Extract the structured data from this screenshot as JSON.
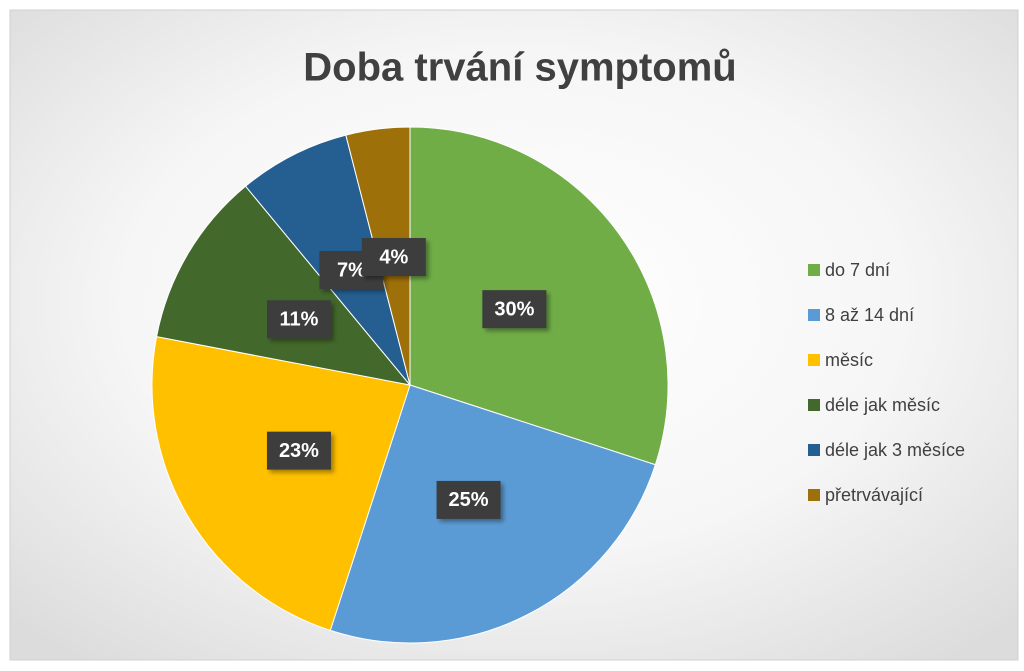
{
  "chart_data": {
    "type": "pie",
    "title": "Doba trvání symptomů",
    "categories": [
      "do 7 dní",
      "8 až 14 dní",
      "měsíc",
      "déle jak měsíc",
      "déle jak 3 měsíce",
      "přetrvávající"
    ],
    "values": [
      30,
      25,
      23,
      11,
      7,
      4
    ],
    "value_labels": [
      "30%",
      "25%",
      "23%",
      "11%",
      "7%",
      "4%"
    ],
    "colors": [
      "#70ad47",
      "#5b9bd5",
      "#ffc000",
      "#43682b",
      "#255e91",
      "#9e7009"
    ],
    "legend": "right"
  }
}
